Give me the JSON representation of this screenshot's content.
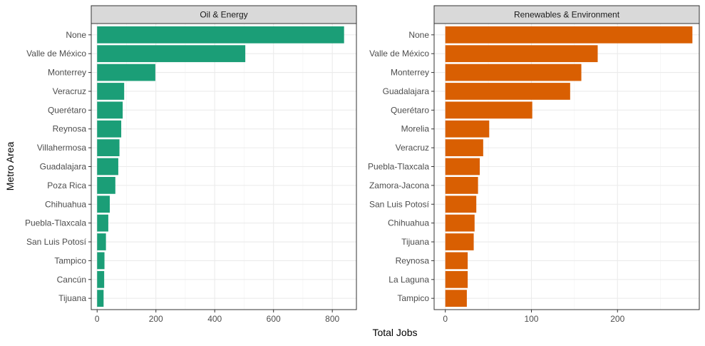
{
  "chart_data": {
    "type": "bar",
    "orientation": "horizontal",
    "xlabel": "Total Jobs",
    "ylabel": "Metro Area",
    "grid": true,
    "legend": "none",
    "panels": [
      {
        "title": "Oil & Energy",
        "color": "#1b9e77",
        "xlim": [
          -20,
          882
        ],
        "xticks": [
          0,
          200,
          400,
          600,
          800
        ],
        "categories": [
          "None",
          "Valle de México",
          "Monterrey",
          "Veracruz",
          "Querétaro",
          "Reynosa",
          "Villahermosa",
          "Guadalajara",
          "Poza Rica",
          "Chihuahua",
          "Puebla-Tlaxcala",
          "San Luis Potosí",
          "Tampico",
          "Cancún",
          "Tijuana"
        ],
        "values": [
          840,
          504,
          198,
          92,
          87,
          82,
          76,
          72,
          62,
          43,
          38,
          30,
          25,
          24,
          22
        ]
      },
      {
        "title": "Renewables & Environment",
        "color": "#d95f02",
        "xlim": [
          -13,
          295
        ],
        "xticks": [
          0,
          100,
          200
        ],
        "categories": [
          "None",
          "Valle de México",
          "Monterrey",
          "Guadalajara",
          "Querétaro",
          "Morelia",
          "Veracruz",
          "Puebla-Tlaxcala",
          "Zamora-Jacona",
          "San Luis Potosí",
          "Chihuahua",
          "Tijuana",
          "Reynosa",
          "La Laguna",
          "Tampico"
        ],
        "values": [
          287,
          177,
          158,
          145,
          101,
          51,
          44,
          40,
          38,
          36,
          34,
          33,
          26,
          26,
          25
        ]
      }
    ]
  }
}
